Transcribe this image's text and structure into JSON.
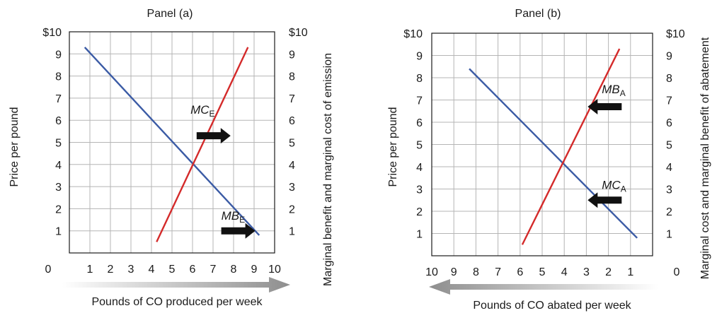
{
  "chart_data": [
    {
      "type": "line",
      "title": "Panel (a)",
      "xlabel": "Pounds of CO produced per week",
      "ylabel": "Price per pound",
      "ylabel_right": "Marginal benefit and marginal cost of emission",
      "xlim": [
        0,
        10
      ],
      "ylim": [
        0,
        10
      ],
      "x_ticks": [
        "0",
        "1",
        "2",
        "3",
        "4",
        "5",
        "6",
        "7",
        "8",
        "9",
        "10"
      ],
      "y_ticks": [
        "$10",
        "9",
        "8",
        "7",
        "6",
        "5",
        "4",
        "3",
        "2",
        "1"
      ],
      "y_ticks_right": [
        "$10",
        "9",
        "8",
        "7",
        "6",
        "5",
        "4",
        "3",
        "2",
        "1"
      ],
      "grid": true,
      "series": [
        {
          "name": "MB_E",
          "label_main": "MB",
          "label_sub": "E",
          "color": "#3b5ba5",
          "points": [
            [
              0.75,
              9.3
            ],
            [
              9.25,
              0.8
            ]
          ]
        },
        {
          "name": "MC_E",
          "label_main": "MC",
          "label_sub": "E",
          "color": "#d42a2a",
          "points": [
            [
              4.25,
              0.5
            ],
            [
              8.7,
              9.3
            ]
          ]
        }
      ],
      "annotations": [
        {
          "series": "MC_E",
          "text_x": 5.9,
          "text_y": 6.3,
          "arrow": "right",
          "arrow_x": 6.2,
          "arrow_y": 5.3
        },
        {
          "series": "MB_E",
          "text_x": 7.4,
          "text_y": 1.5,
          "arrow": "right",
          "arrow_x": 7.4,
          "arrow_y": 1.0
        }
      ],
      "axis_arrow": "right"
    },
    {
      "type": "line",
      "title": "Panel (b)",
      "xlabel": "Pounds of CO abated per week",
      "ylabel": "Price per pound",
      "ylabel_right": "Marginal cost and marginal benefit of abatement",
      "xlim": [
        10,
        0
      ],
      "ylim": [
        0,
        10
      ],
      "x_ticks": [
        "10",
        "9",
        "8",
        "7",
        "6",
        "5",
        "4",
        "3",
        "2",
        "1"
      ],
      "x_tick_origin": "0",
      "y_ticks": [
        "$10",
        "9",
        "8",
        "7",
        "6",
        "5",
        "4",
        "3",
        "2",
        "1"
      ],
      "y_ticks_right": [
        "$10",
        "9",
        "8",
        "7",
        "6",
        "5",
        "4",
        "3",
        "2",
        "1"
      ],
      "grid": true,
      "series": [
        {
          "name": "MC_A",
          "label_main": "MC",
          "label_sub": "A",
          "color": "#3b5ba5",
          "points": [
            [
              8.3,
              8.4
            ],
            [
              0.7,
              0.8
            ]
          ]
        },
        {
          "name": "MB_A",
          "label_main": "MB",
          "label_sub": "A",
          "color": "#d42a2a",
          "points": [
            [
              5.9,
              0.5
            ],
            [
              1.5,
              9.3
            ]
          ]
        }
      ],
      "annotations": [
        {
          "series": "MB_A",
          "text_x": 2.3,
          "text_y": 7.3,
          "arrow": "left",
          "arrow_x": 1.4,
          "arrow_y": 6.7
        },
        {
          "series": "MC_A",
          "text_x": 2.3,
          "text_y": 3.0,
          "arrow": "left",
          "arrow_x": 1.4,
          "arrow_y": 2.5
        }
      ],
      "axis_arrow": "left"
    }
  ]
}
